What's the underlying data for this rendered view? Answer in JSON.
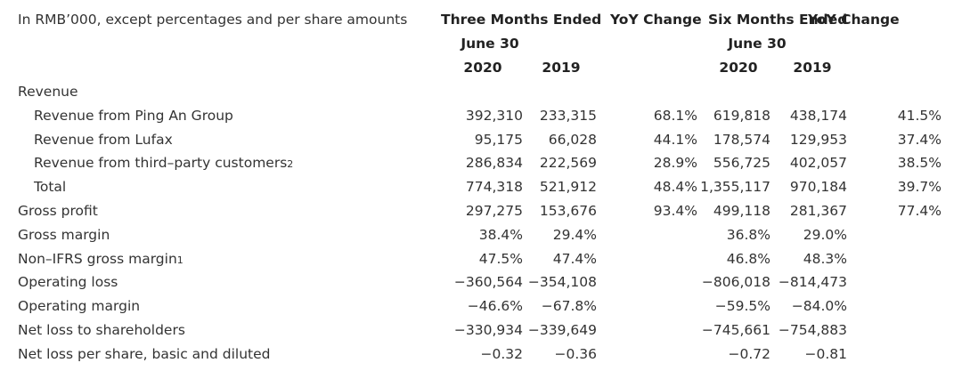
{
  "table": {
    "caption": "In RMB’000, except percentages and per share amounts",
    "groups": [
      {
        "title": "Three Months Ended",
        "subtitle": "June 30",
        "years": [
          "2020",
          "2019"
        ]
      },
      {
        "title": "YoY Change"
      },
      {
        "title": "Six Months Ended",
        "subtitle": "June 30",
        "years": [
          "2020",
          "2019"
        ]
      },
      {
        "title": "YoY Change"
      }
    ],
    "rows": [
      {
        "label": "Revenue",
        "level": 0,
        "values": [
          null,
          null,
          null,
          null,
          null,
          null
        ]
      },
      {
        "label": "Revenue from Ping An Group",
        "level": 1,
        "values": [
          "392,310",
          "233,315",
          "68.1%",
          "619,818",
          "438,174",
          "41.5%"
        ]
      },
      {
        "label": "Revenue from Lufax",
        "level": 1,
        "values": [
          "95,175",
          "66,028",
          "44.1%",
          "178,574",
          "129,953",
          "37.4%"
        ]
      },
      {
        "label": "Revenue from third–party customers",
        "note": "2",
        "level": 1,
        "values": [
          "286,834",
          "222,569",
          "28.9%",
          "556,725",
          "402,057",
          "38.5%"
        ]
      },
      {
        "label": "Total",
        "level": 1,
        "values": [
          "774,318",
          "521,912",
          "48.4%",
          "1,355,117",
          "970,184",
          "39.7%"
        ]
      },
      {
        "label": "Gross profit",
        "level": 0,
        "values": [
          "297,275",
          "153,676",
          "93.4%",
          "499,118",
          "281,367",
          "77.4%"
        ]
      },
      {
        "label": "Gross margin",
        "level": 0,
        "values": [
          "38.4%",
          "29.4%",
          null,
          "36.8%",
          "29.0%",
          null
        ]
      },
      {
        "label": "Non–IFRS gross margin",
        "note": "1",
        "level": 0,
        "values": [
          "47.5%",
          "47.4%",
          null,
          "46.8%",
          "48.3%",
          null
        ]
      },
      {
        "label": "Operating loss",
        "level": 0,
        "values": [
          "−360,564",
          "−354,108",
          null,
          "−806,018",
          "−814,473",
          null
        ]
      },
      {
        "label": "Operating margin",
        "level": 0,
        "values": [
          "−46.6%",
          "−67.8%",
          null,
          "−59.5%",
          "−84.0%",
          null
        ]
      },
      {
        "label": "Net loss to shareholders",
        "level": 0,
        "values": [
          "−330,934",
          "−339,649",
          null,
          "−745,661",
          "−754,883",
          null
        ]
      },
      {
        "label": "Net loss per share, basic and diluted",
        "level": 0,
        "values": [
          "−0.32",
          "−0.36",
          null,
          "−0.72",
          "−0.81",
          null
        ]
      }
    ]
  }
}
